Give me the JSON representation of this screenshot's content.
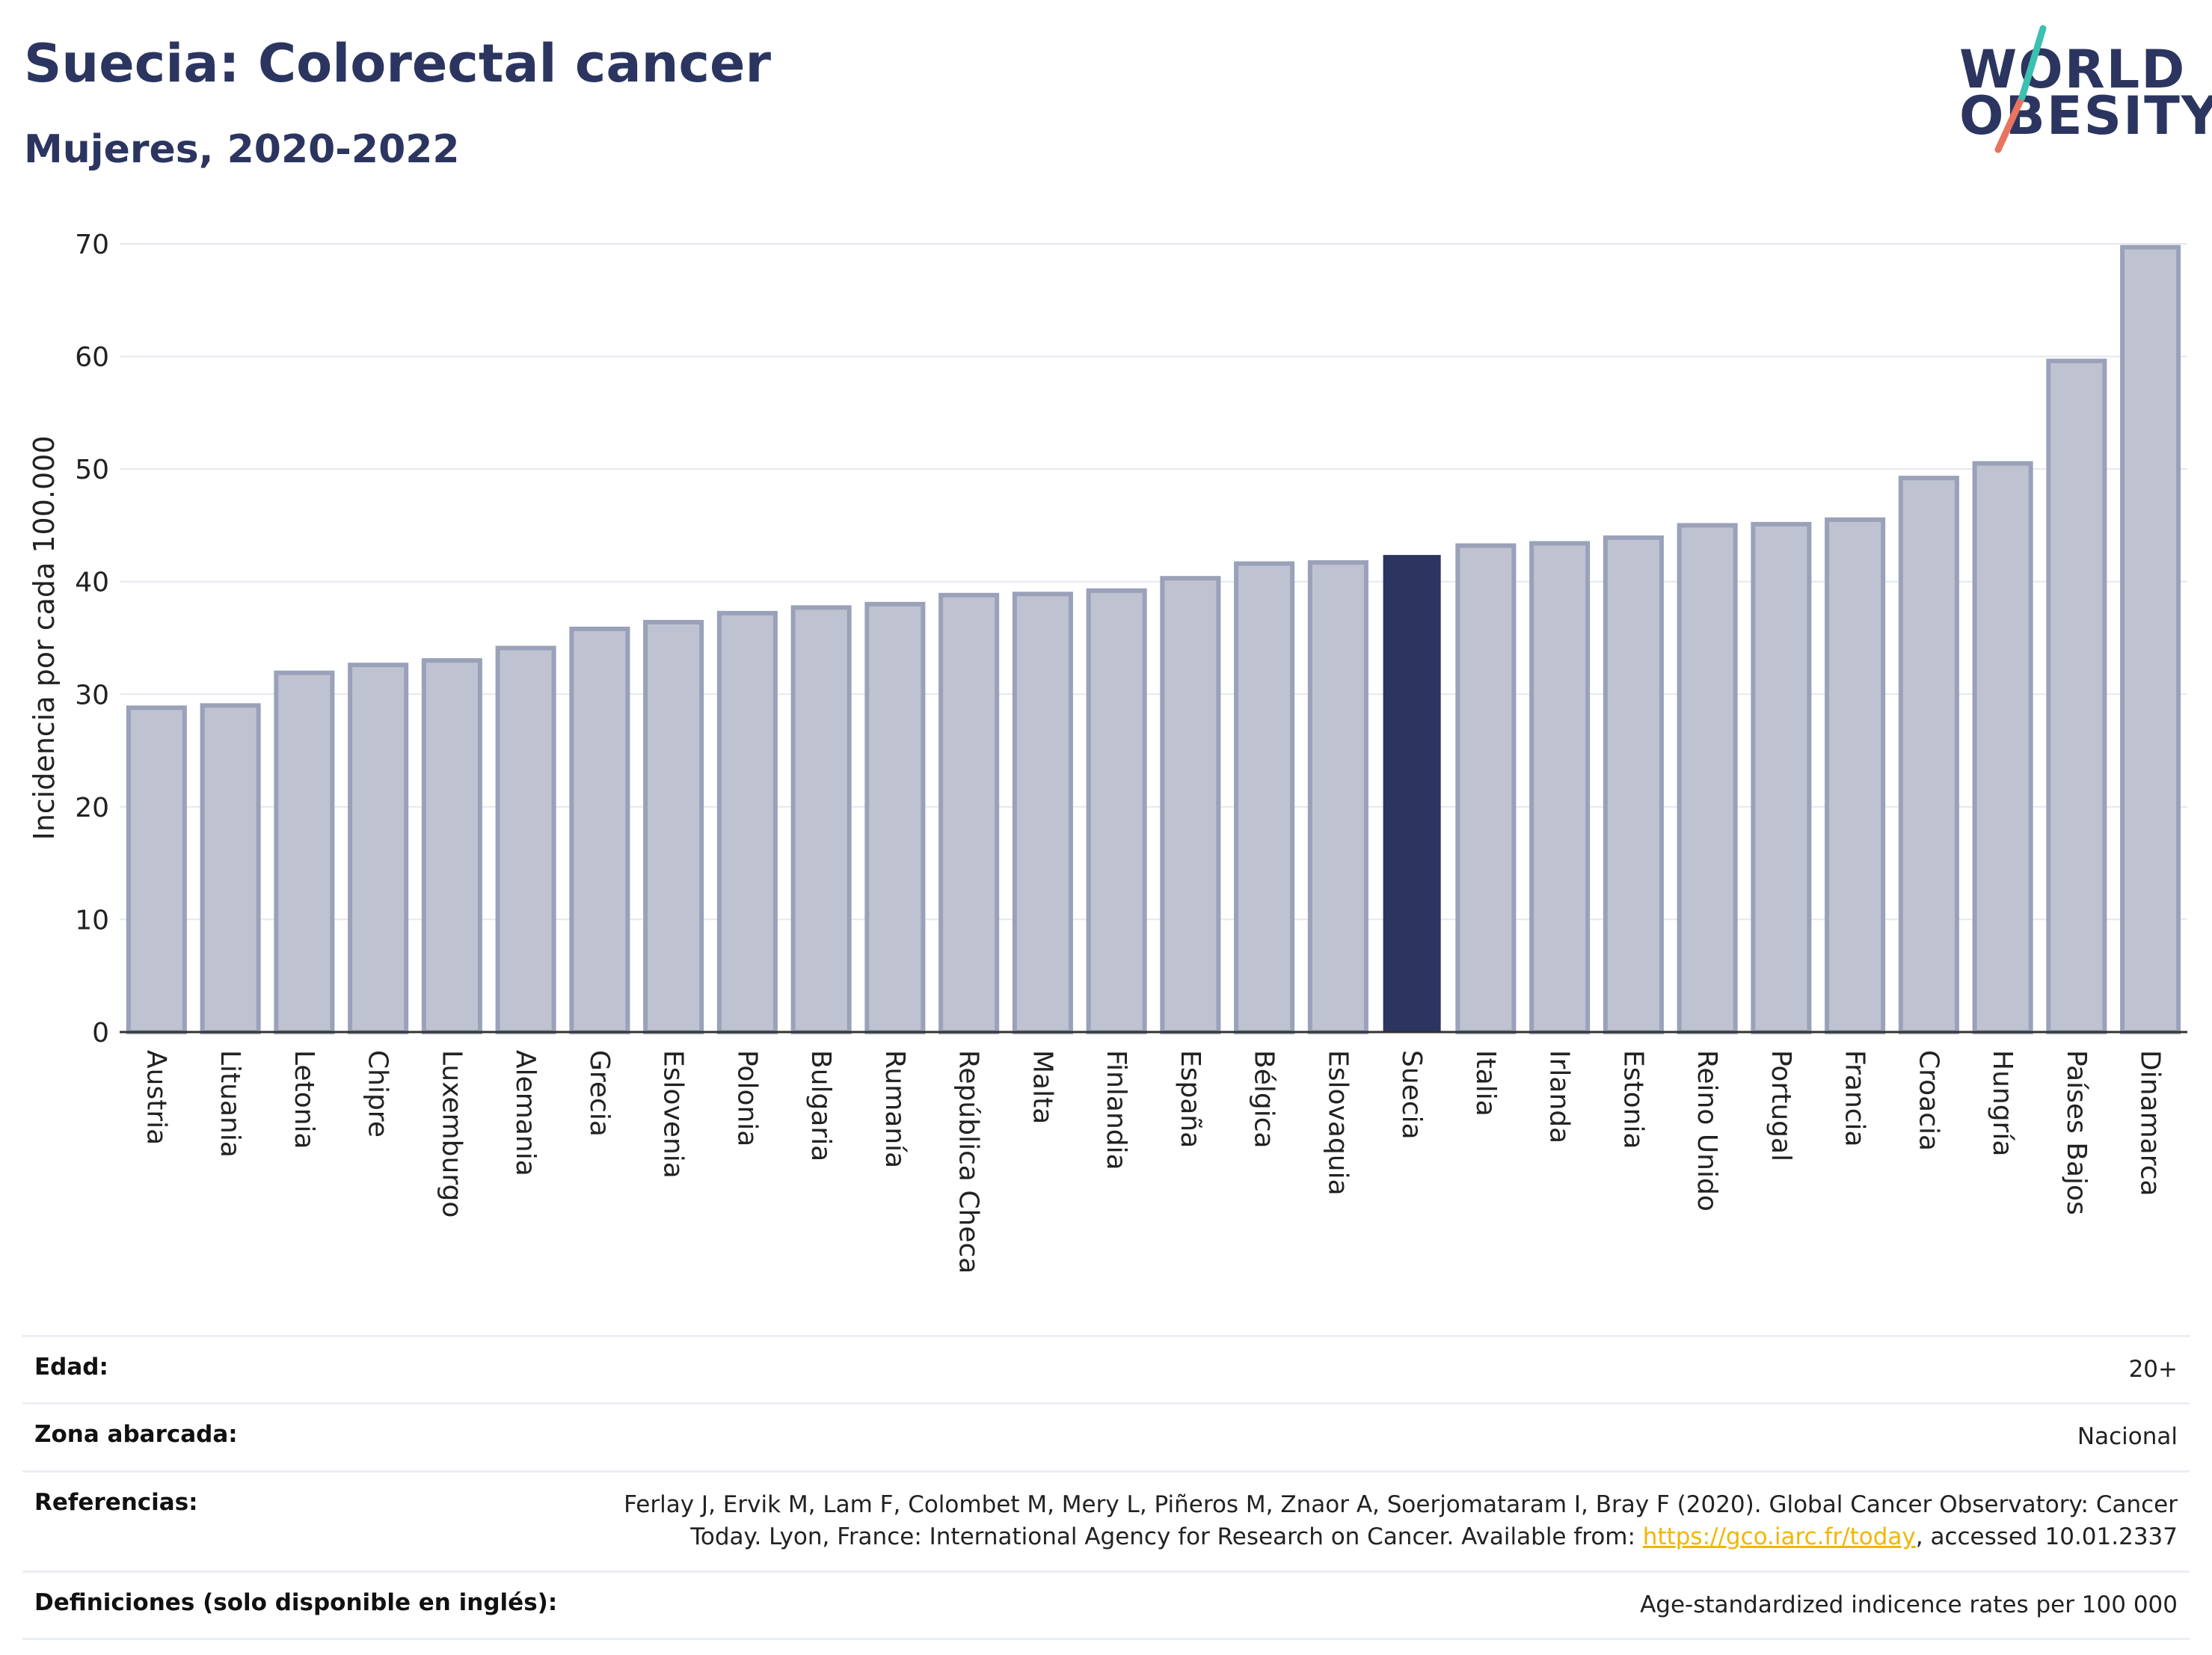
{
  "title": "Suecia: Colorectal cancer",
  "subtitle": "Mujeres, 2020-2022",
  "logo": {
    "line1": "WORLD",
    "line2": "OBESITY"
  },
  "chart_data": {
    "type": "bar",
    "ylabel": "Incidencia por cada 100.000",
    "ylim": [
      0,
      70
    ],
    "yticks": [
      0,
      10,
      20,
      30,
      40,
      50,
      60,
      70
    ],
    "grid": true,
    "highlight": "Suecia",
    "colors": {
      "bar": "#bfc3d1",
      "bar_border": "#9aa1b9",
      "highlight": "#2b3560",
      "grid": "#e6e8ef"
    },
    "categories": [
      "Austria",
      "Lituania",
      "Letonia",
      "Chipre",
      "Luxemburgo",
      "Alemania",
      "Grecia",
      "Eslovenia",
      "Polonia",
      "Bulgaria",
      "Rumanía",
      "República Checa",
      "Malta",
      "Finlandia",
      "España",
      "Bélgica",
      "Eslovaquia",
      "Suecia",
      "Italia",
      "Irlanda",
      "Estonia",
      "Reino Unido",
      "Portugal",
      "Francia",
      "Croacia",
      "Hungría",
      "Países Bajos",
      "Dinamarca"
    ],
    "values": [
      28.8,
      29.0,
      31.9,
      32.6,
      33.0,
      34.1,
      35.8,
      36.4,
      37.2,
      37.7,
      38.0,
      38.8,
      38.9,
      39.2,
      40.3,
      41.6,
      41.7,
      42.3,
      43.2,
      43.4,
      43.9,
      45.0,
      45.1,
      45.5,
      49.2,
      50.5,
      59.6,
      69.7
    ]
  },
  "info": {
    "edad_label": "Edad:",
    "edad_value": "20+",
    "zona_label": "Zona abarcada:",
    "zona_value": "Nacional",
    "ref_label": "Referencias:",
    "ref_text_before": "Ferlay J, Ervik M, Lam F, Colombet M, Mery L, Piñeros M, Znaor A, Soerjomataram I, Bray F (2020). Global Cancer Observatory: Cancer Today. Lyon, France: International Agency for Research on Cancer. Available from: ",
    "ref_link": "https://gco.iarc.fr/today",
    "ref_text_after": ", accessed 10.01.2337",
    "def_label": "Definiciones (solo disponible en inglés):",
    "def_value": "Age-standardized indicence rates per 100 000"
  }
}
